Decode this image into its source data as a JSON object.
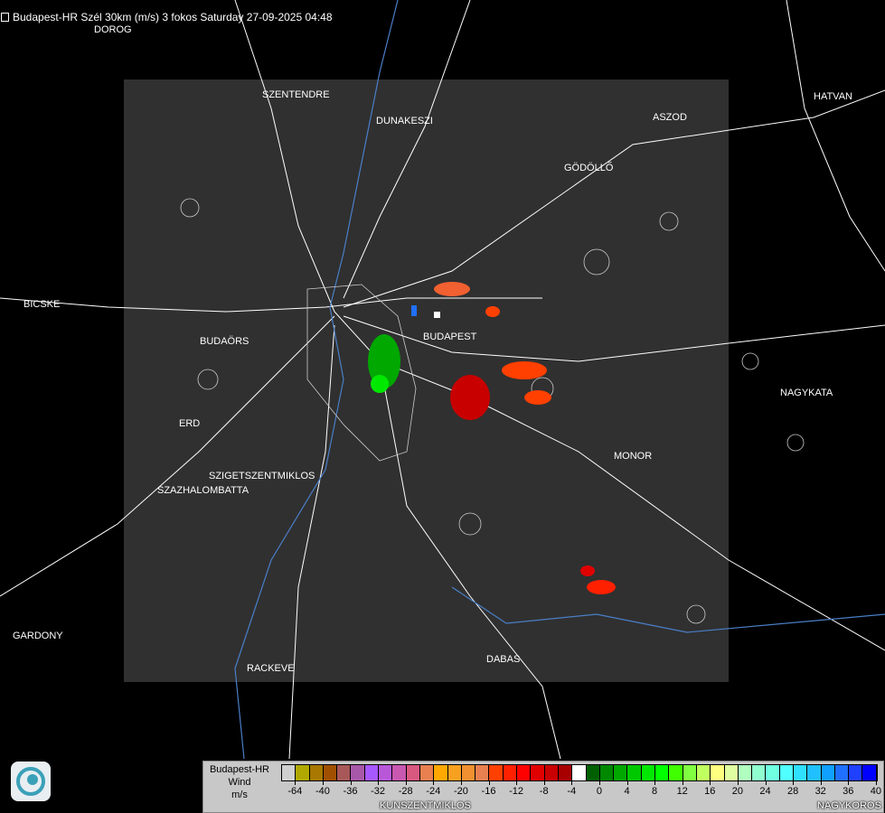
{
  "title": "Budapest-HR Szél 30km (m/s) 3 fokos Saturday 27-09-2025 04:48",
  "cities": [
    {
      "name": "DOROG"
    },
    {
      "name": "SZENTENDRE"
    },
    {
      "name": "DUNAKESZI"
    },
    {
      "name": "HATVAN"
    },
    {
      "name": "ASZOD"
    },
    {
      "name": "GÖDÖLLŐ"
    },
    {
      "name": "BICSKE"
    },
    {
      "name": "BUDAÖRS"
    },
    {
      "name": "BUDAPEST"
    },
    {
      "name": "NAGYKATA"
    },
    {
      "name": "ERD"
    },
    {
      "name": "MONOR"
    },
    {
      "name": "SZIGETSZENTMIKLOS"
    },
    {
      "name": "SZAZHALOMBATTA"
    },
    {
      "name": "GARDONY"
    },
    {
      "name": "RACKEVE"
    },
    {
      "name": "DABAS"
    },
    {
      "name": "KUNSZENTMIKLOS"
    },
    {
      "name": "NAGYKOROS"
    }
  ],
  "legend": {
    "radar": "Budapest-HR",
    "quantity": "Wind",
    "unit": "m/s",
    "colors": [
      "#d0d0d0",
      "#b0a800",
      "#a87800",
      "#a05000",
      "#a85858",
      "#a858a8",
      "#a858ff",
      "#b858d8",
      "#c858b0",
      "#d85880",
      "#e88050",
      "#ffa800",
      "#f8a020",
      "#f09030",
      "#e88050",
      "#ff4000",
      "#ff2000",
      "#ff0000",
      "#e00000",
      "#c80000",
      "#a80000",
      "#ffffff",
      "#006000",
      "#008800",
      "#00a800",
      "#00c800",
      "#00e800",
      "#00ff00",
      "#40ff00",
      "#80ff40",
      "#c0ff60",
      "#ffff80",
      "#e0ffa0",
      "#b0ffc0",
      "#90ffd0",
      "#70ffe0",
      "#50ffff",
      "#30e0ff",
      "#20c0ff",
      "#10a0ff",
      "#2070ff",
      "#2040ff",
      "#0000ff"
    ],
    "tick_labels": [
      "-64",
      "-40",
      "-36",
      "-32",
      "-28",
      "-24",
      "-20",
      "-16",
      "-12",
      "-8",
      "-4",
      "0",
      "4",
      "8",
      "12",
      "16",
      "20",
      "24",
      "28",
      "32",
      "36",
      "40"
    ]
  }
}
